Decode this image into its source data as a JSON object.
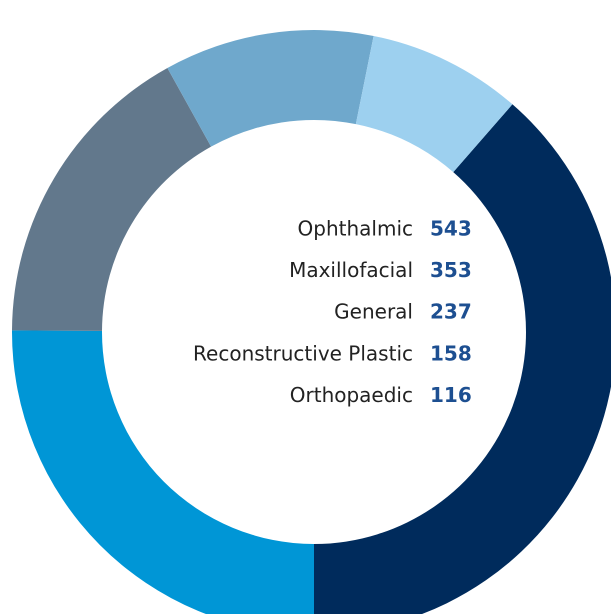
{
  "chart_data": {
    "type": "donut",
    "categories": [
      "Ophthalmic",
      "Maxillofacial",
      "General",
      "Reconstructive Plastic",
      "Orthopaedic"
    ],
    "values": [
      543,
      353,
      237,
      158,
      116
    ],
    "colors": [
      "#002b5c",
      "#0096d6",
      "#62788c",
      "#6fa8cc",
      "#9dd0ef"
    ]
  }
}
